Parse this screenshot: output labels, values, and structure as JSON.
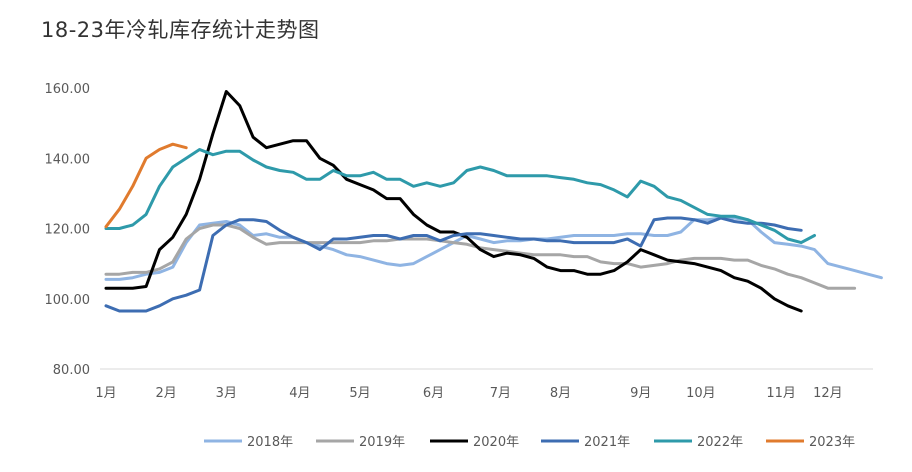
{
  "chart_data": {
    "type": "line",
    "title": "18-23年冷轧库存统计走势图",
    "xlabel": "",
    "ylabel": "",
    "ylim": [
      80,
      160
    ],
    "y_ticks": [
      "80.00",
      "100.00",
      "120.00",
      "140.00",
      "160.00"
    ],
    "x_ticks": [
      "1月",
      "2月",
      "3月",
      "4月",
      "5月",
      "6月",
      "7月",
      "8月",
      "9月",
      "10月",
      "11月",
      "12月"
    ],
    "x_tick_weeks": [
      0,
      4.5,
      9,
      14.5,
      19,
      24.5,
      29.5,
      34,
      40,
      44.5,
      50.5,
      54
    ],
    "x_range_weeks": [
      0,
      57
    ],
    "grid": false,
    "legend_position": "bottom",
    "series": [
      {
        "name": "2018年",
        "color": "#8fb4e3",
        "values": [
          105.5,
          105.5,
          106,
          107,
          107.5,
          109,
          116,
          121,
          121.5,
          122,
          121,
          118,
          118.5,
          117.5,
          117.5,
          116,
          115,
          114,
          112.5,
          112,
          111,
          110,
          109.5,
          110,
          112,
          114,
          116,
          118,
          117,
          116,
          116.5,
          116.5,
          117,
          117,
          117.5,
          118,
          118,
          118,
          118,
          118.5,
          118.5,
          118,
          118,
          119,
          122.5,
          122.5,
          123,
          123,
          122.5,
          119,
          116,
          115.5,
          115,
          114,
          110,
          109,
          108,
          107,
          106
        ]
      },
      {
        "name": "2019年",
        "color": "#a6a6a6",
        "values": [
          107,
          107,
          107.5,
          107.5,
          108.5,
          110.5,
          117,
          120,
          121,
          121,
          120,
          117.5,
          115.5,
          116,
          116,
          116,
          116,
          116,
          116,
          116,
          116.5,
          116.5,
          117,
          117,
          117,
          116.5,
          116,
          115.5,
          114.5,
          114,
          113.5,
          113,
          112.5,
          112.5,
          112.5,
          112,
          112,
          110.5,
          110,
          110,
          109,
          109.5,
          110,
          111,
          111.5,
          111.5,
          111.5,
          111,
          111,
          109.5,
          108.5,
          107,
          106,
          104.5,
          103,
          103,
          103
        ]
      },
      {
        "name": "2020年",
        "color": "#000000",
        "values": [
          103,
          103,
          103,
          103.5,
          114,
          117.5,
          124,
          134,
          147,
          159,
          155,
          146,
          143,
          144,
          145,
          145,
          140,
          138,
          134,
          132.5,
          131,
          128.5,
          128.5,
          124,
          121,
          119,
          119,
          117.5,
          114,
          112,
          113,
          112.5,
          111.5,
          109,
          108,
          108,
          107,
          107,
          108,
          110.5,
          114,
          112.5,
          111,
          110.5,
          110,
          109,
          108,
          106,
          105,
          103,
          100,
          98,
          96.5
        ]
      },
      {
        "name": "2021年",
        "color": "#3d6db2",
        "values": [
          98,
          96.5,
          96.5,
          96.5,
          98,
          100,
          101,
          102.5,
          118,
          121,
          122.5,
          122.5,
          122,
          119.5,
          117.5,
          116,
          114,
          117,
          117,
          117.5,
          118,
          118,
          117,
          118,
          118,
          116.5,
          118,
          118.5,
          118.5,
          118,
          117.5,
          117,
          117,
          116.5,
          116.5,
          116,
          116,
          116,
          116,
          117,
          115,
          122.5,
          123,
          123,
          122.5,
          121.5,
          123,
          122,
          121.5,
          121.5,
          121,
          120,
          119.5
        ]
      },
      {
        "name": "2022年",
        "color": "#2e9aaa",
        "values": [
          120,
          120,
          121,
          124,
          132,
          137.5,
          140,
          142.5,
          141,
          142,
          142,
          139.5,
          137.5,
          136.5,
          136,
          134,
          134,
          136.5,
          135,
          135,
          136,
          134,
          134,
          132,
          133,
          132,
          133,
          136.5,
          137.5,
          136.5,
          135,
          135,
          135,
          135,
          134.5,
          134,
          133,
          132.5,
          131,
          129,
          133.5,
          132,
          129,
          128,
          126,
          124,
          123.5,
          123.5,
          122.5,
          121,
          119.5,
          117,
          116,
          118
        ]
      },
      {
        "name": "2023年",
        "color": "#e07b2e",
        "values": [
          120.5,
          125.5,
          132,
          140,
          142.5,
          144,
          143
        ]
      }
    ]
  }
}
